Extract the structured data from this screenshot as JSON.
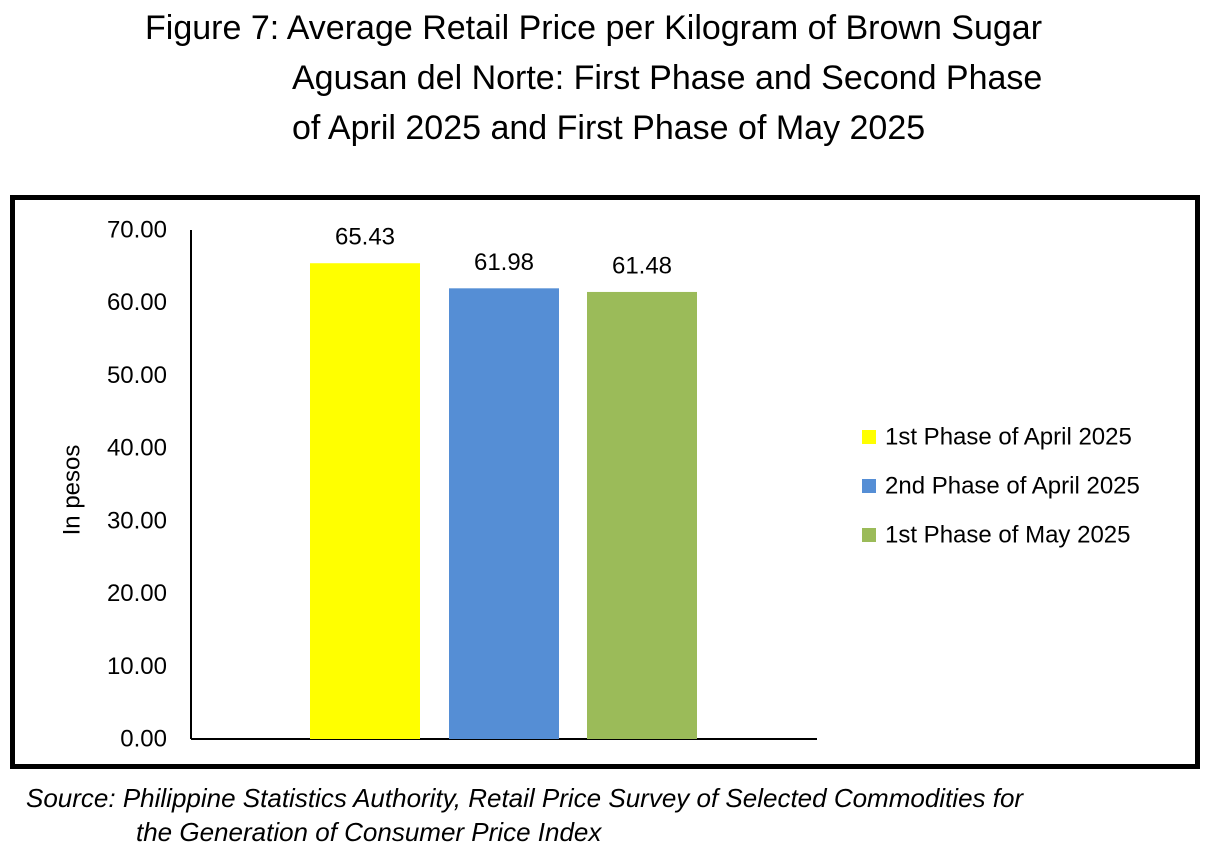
{
  "title": {
    "line1": "Figure 7: Average Retail Price per Kilogram of Brown Sugar",
    "line2": "Agusan del Norte: First Phase and Second Phase",
    "line3": "of April 2025 and First Phase of May 2025"
  },
  "source": {
    "line1": "Source: Philippine Statistics Authority, Retail Price Survey of Selected Commodities for",
    "line2": "the Generation of Consumer Price Index"
  },
  "chart_data": {
    "type": "bar",
    "categories": [
      ""
    ],
    "series": [
      {
        "name": "1st Phase of April 2025",
        "values": [
          65.43
        ],
        "label": "65.43",
        "color": "#ffff00"
      },
      {
        "name": "2nd Phase of April 2025",
        "values": [
          61.98
        ],
        "label": "61.98",
        "color": "#558ed5"
      },
      {
        "name": "1st Phase of May 2025",
        "values": [
          61.48
        ],
        "label": "61.48",
        "color": "#9bbb59"
      }
    ],
    "title": "",
    "xlabel": "",
    "ylabel": "In pesos",
    "ylim": [
      0,
      70
    ],
    "yticks": [
      "0.00",
      "10.00",
      "20.00",
      "30.00",
      "40.00",
      "50.00",
      "60.00",
      "70.00"
    ],
    "grid": false,
    "legend": "right"
  }
}
